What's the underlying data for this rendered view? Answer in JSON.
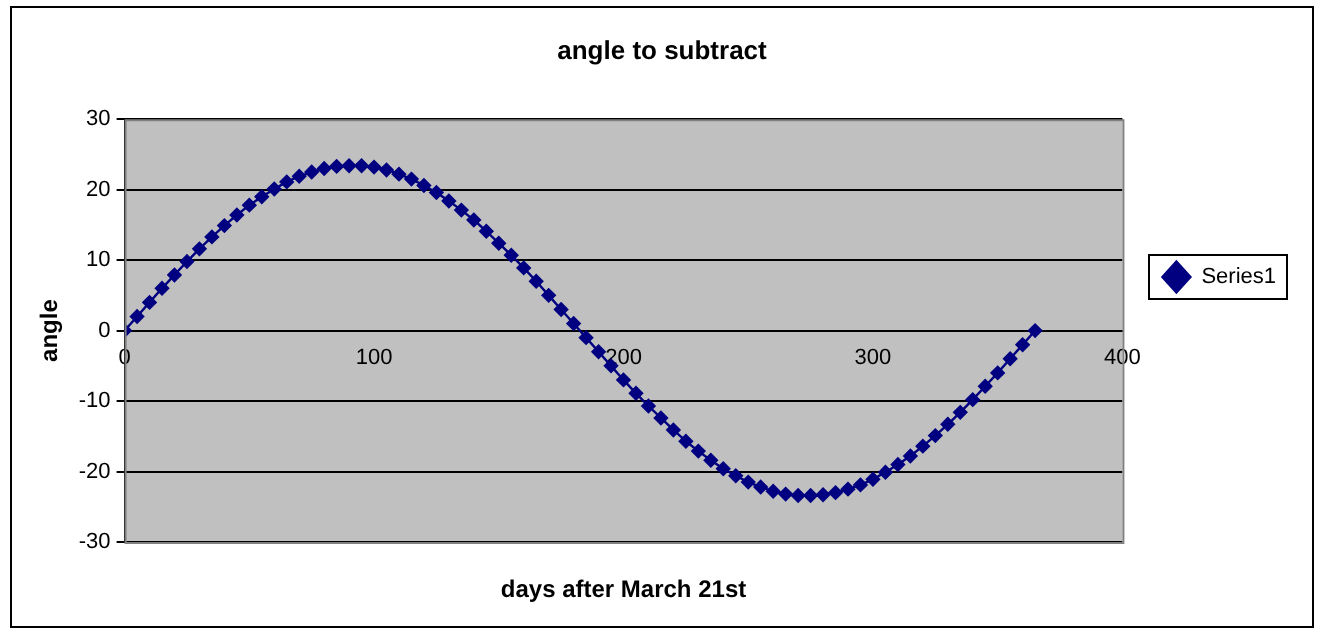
{
  "chart_data": {
    "type": "line",
    "title": "angle to subtract",
    "xlabel": "days after March 21st",
    "ylabel": "angle",
    "series": [
      {
        "name": "Series1",
        "color": "#000080",
        "x": [
          0,
          5,
          10,
          15,
          20,
          25,
          30,
          35,
          40,
          45,
          50,
          55,
          60,
          65,
          70,
          75,
          80,
          85,
          90,
          95,
          100,
          105,
          110,
          115,
          120,
          125,
          130,
          135,
          140,
          145,
          150,
          155,
          160,
          165,
          170,
          175,
          180,
          185,
          190,
          195,
          200,
          205,
          210,
          215,
          220,
          225,
          230,
          235,
          240,
          245,
          250,
          255,
          260,
          265,
          270,
          275,
          280,
          285,
          290,
          295,
          300,
          305,
          310,
          315,
          320,
          325,
          330,
          335,
          340,
          345,
          350,
          355,
          360,
          365
        ],
        "values": [
          0,
          2.0,
          4.0,
          6.0,
          7.9,
          9.8,
          11.6,
          13.3,
          14.9,
          16.4,
          17.8,
          19.0,
          20.1,
          21.1,
          21.9,
          22.5,
          23.0,
          23.3,
          23.4,
          23.4,
          23.2,
          22.8,
          22.2,
          21.5,
          20.6,
          19.6,
          18.4,
          17.1,
          15.7,
          14.1,
          12.4,
          10.7,
          8.9,
          7.0,
          5.0,
          3.0,
          1.0,
          -1.0,
          -3.0,
          -5.0,
          -7.0,
          -8.9,
          -10.7,
          -12.4,
          -14.1,
          -15.7,
          -17.1,
          -18.4,
          -19.6,
          -20.6,
          -21.5,
          -22.2,
          -22.8,
          -23.2,
          -23.4,
          -23.4,
          -23.3,
          -23.0,
          -22.5,
          -21.9,
          -21.1,
          -20.1,
          -19.0,
          -17.8,
          -16.4,
          -14.9,
          -13.3,
          -11.6,
          -9.8,
          -7.9,
          -6.0,
          -4.0,
          -2.0,
          0
        ]
      }
    ],
    "xlim": [
      0,
      400
    ],
    "xticks": [
      0,
      100,
      200,
      300,
      400
    ],
    "ylim": [
      -30,
      30
    ],
    "yticks": [
      -30,
      -20,
      -10,
      0,
      10,
      20,
      30
    ],
    "grid": "y",
    "legend": "right",
    "marker": "diamond",
    "line_style": "solid"
  }
}
